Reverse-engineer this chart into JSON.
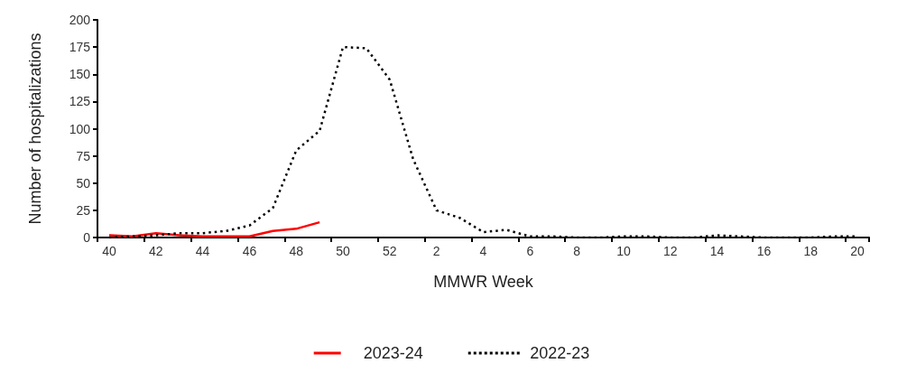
{
  "chart_data": {
    "type": "line",
    "xlabel": "MMWR Week",
    "ylabel": "Number of hospitalizations",
    "categories": [
      "40",
      null,
      "42",
      null,
      "44",
      null,
      "46",
      null,
      "48",
      null,
      "50",
      null,
      "52",
      null,
      "2",
      null,
      "4",
      null,
      "6",
      null,
      "8",
      null,
      "10",
      null,
      "12",
      null,
      "14",
      null,
      "16",
      null,
      "18",
      null,
      "20"
    ],
    "series": [
      {
        "name": "2023-24",
        "color": "#ff0000",
        "line_style": "solid",
        "values": [
          2,
          1,
          4,
          2,
          1,
          1,
          1,
          6,
          8,
          14,
          null,
          null,
          null,
          null,
          null,
          null,
          null,
          null,
          null,
          null,
          null,
          null,
          null,
          null,
          null,
          null,
          null,
          null,
          null,
          null,
          null,
          null,
          null
        ]
      },
      {
        "name": "2022-23",
        "color": "#000000",
        "line_style": "dotted",
        "values": [
          0,
          1,
          2,
          4,
          4,
          6,
          11,
          27,
          80,
          98,
          175,
          174,
          145,
          72,
          25,
          18,
          5,
          7,
          1,
          1,
          0,
          0,
          1,
          1,
          0,
          0,
          2,
          1,
          0,
          0,
          0,
          1,
          1
        ]
      }
    ],
    "ylim": [
      0,
      200
    ],
    "yticks": [
      0,
      25,
      50,
      75,
      100,
      125,
      150,
      175,
      200
    ],
    "grid": false,
    "legend": "bottom",
    "marker": "none"
  }
}
